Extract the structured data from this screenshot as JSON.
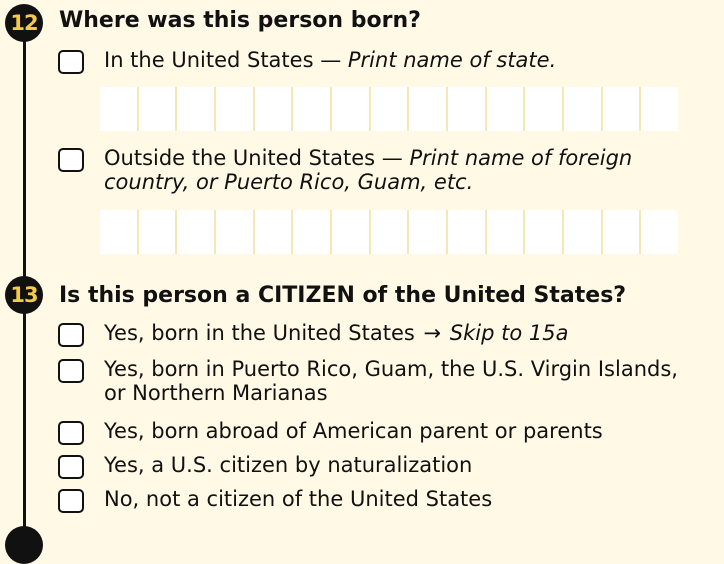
{
  "q12": {
    "number": "12",
    "title": "Where was this person born?",
    "options": [
      {
        "text": "In the United States — ",
        "italic": "Print name of state."
      },
      {
        "text": "Outside the United States — ",
        "italic": "Print name of foreign",
        "line2": "country, or Puerto Rico, Guam, etc."
      }
    ],
    "write_in_cells": 15
  },
  "q13": {
    "number": "13",
    "title": "Is this person a CITIZEN of the United States?",
    "options": [
      {
        "text": "Yes, born in the United States ",
        "arrow": "→",
        "italic": " Skip to 15a"
      },
      {
        "text": "Yes, born in Puerto Rico, Guam, the U.S. Virgin Islands,",
        "line2": "or Northern Marianas"
      },
      {
        "text": "Yes, born abroad of American parent or parents"
      },
      {
        "text": "Yes, a U.S. citizen by naturalization"
      },
      {
        "text": "No, not a citizen of the United States"
      }
    ]
  },
  "colors": {
    "background": "#fff9e6",
    "number_badge": "#111111",
    "number_text": "#f7c948"
  }
}
